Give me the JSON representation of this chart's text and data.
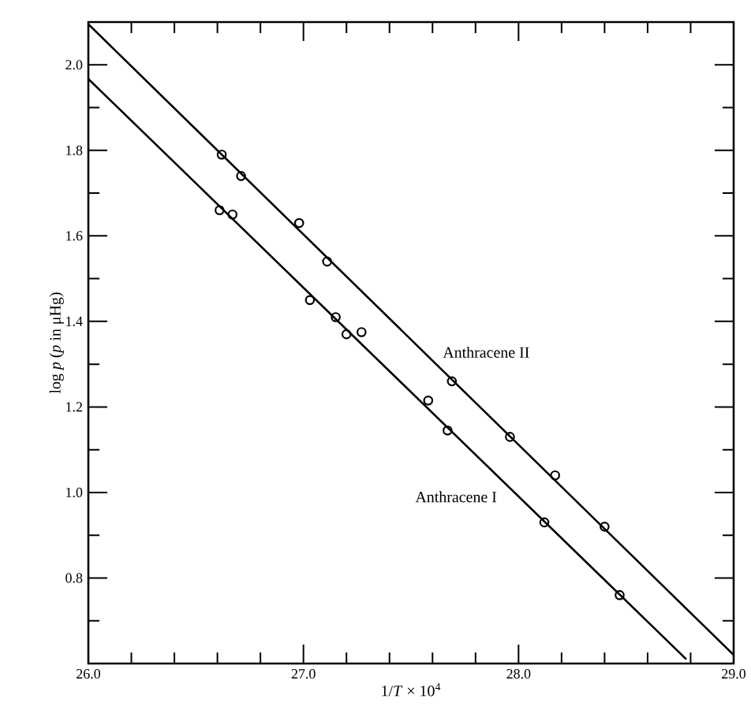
{
  "chart_data": {
    "type": "scatter",
    "xlabel": "1/*T* × 10$^{4}$",
    "ylabel": "log *p* (*p* in μHg)",
    "xlim": [
      26.0,
      29.0
    ],
    "ylim": [
      0.6,
      2.1
    ],
    "xticks": [
      {
        "value": 26.0,
        "label": "26.0"
      },
      {
        "value": 26.2,
        "label": null
      },
      {
        "value": 26.4,
        "label": null
      },
      {
        "value": 26.6,
        "label": null
      },
      {
        "value": 26.8,
        "label": null
      },
      {
        "value": 27.0,
        "label": "27.0"
      },
      {
        "value": 27.2,
        "label": null
      },
      {
        "value": 27.4,
        "label": null
      },
      {
        "value": 27.6,
        "label": null
      },
      {
        "value": 27.8,
        "label": null
      },
      {
        "value": 28.0,
        "label": "28.0"
      },
      {
        "value": 28.2,
        "label": null
      },
      {
        "value": 28.4,
        "label": null
      },
      {
        "value": 28.6,
        "label": null
      },
      {
        "value": 28.8,
        "label": null
      },
      {
        "value": 29.0,
        "label": "29.0"
      }
    ],
    "yticks": [
      {
        "value": 0.7,
        "label": null
      },
      {
        "value": 0.8,
        "label": "0.8"
      },
      {
        "value": 0.9,
        "label": null
      },
      {
        "value": 1.0,
        "label": "1.0"
      },
      {
        "value": 1.1,
        "label": null
      },
      {
        "value": 1.2,
        "label": "1.2"
      },
      {
        "value": 1.3,
        "label": null
      },
      {
        "value": 1.4,
        "label": "1.4"
      },
      {
        "value": 1.5,
        "label": null
      },
      {
        "value": 1.6,
        "label": "1.6"
      },
      {
        "value": 1.7,
        "label": null
      },
      {
        "value": 1.8,
        "label": "1.8"
      },
      {
        "value": 1.9,
        "label": null
      },
      {
        "value": 2.0,
        "label": "2.0"
      }
    ],
    "grid": false,
    "legend": false,
    "series": [
      {
        "marker": "circle",
        "color": "#000000",
        "x": [
          26.62,
          26.71,
          26.98,
          27.11,
          27.69,
          27.96,
          28.17,
          28.4
        ],
        "values": [
          1.79,
          1.74,
          1.63,
          1.54,
          1.26,
          1.13,
          1.04,
          0.92
        ]
      },
      {
        "type": "line",
        "name": "Anthracene II",
        "marker": "none",
        "color": "#000000",
        "line_style": "solid",
        "x": [
          26.0,
          29.0
        ],
        "values": [
          2.095,
          0.62
        ]
      },
      {
        "marker": "circle",
        "color": "#000000",
        "x": [
          26.61,
          26.67,
          27.03,
          27.15,
          27.2,
          27.27,
          27.58,
          27.67,
          28.12,
          28.47
        ],
        "values": [
          1.66,
          1.65,
          1.45,
          1.41,
          1.37,
          1.375,
          1.215,
          1.145,
          0.93,
          0.76
        ]
      },
      {
        "type": "line",
        "name": "Anthracene I",
        "marker": "none",
        "color": "#000000",
        "line_style": "solid",
        "x": [
          26.0,
          28.78
        ],
        "values": [
          1.967,
          0.61
        ]
      }
    ]
  }
}
